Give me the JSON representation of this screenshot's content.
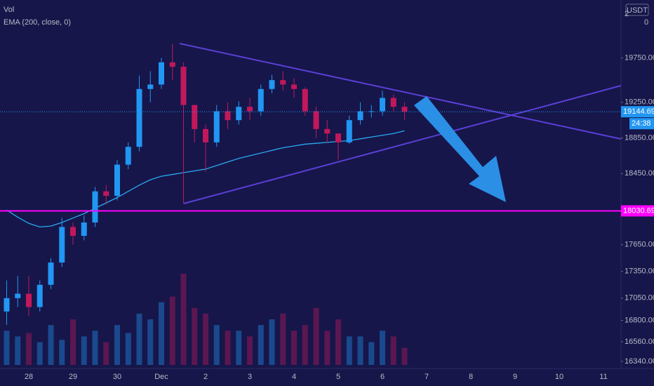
{
  "chart_data": {
    "type": "candlestick",
    "currency": "USDT",
    "volume_label": "Vol",
    "volume_axis_labels": [
      "2",
      "0"
    ],
    "indicator_label": "EMA (200, close, 0)",
    "countdown": "24:38",
    "categories": [
      null,
      null,
      "28",
      null,
      null,
      null,
      "29",
      null,
      null,
      null,
      "30",
      null,
      null,
      null,
      "Dec",
      null,
      null,
      null,
      "2",
      null,
      null,
      null,
      "3",
      null,
      null,
      null,
      "4",
      null,
      null,
      null,
      "5",
      null,
      null,
      null,
      "6",
      null,
      null,
      null,
      "7",
      null,
      null,
      null,
      "8",
      null,
      null,
      null,
      "9",
      null,
      null,
      null,
      "10",
      null,
      null,
      null,
      "11",
      null
    ],
    "open": [
      16900,
      17050,
      17100,
      16950,
      17200,
      17450,
      17850,
      17750,
      17900,
      18250,
      18200,
      18550,
      18750,
      19400,
      19450,
      19700,
      19650,
      19220,
      18950,
      18800,
      19150,
      19050,
      19200,
      19150,
      19400,
      19500,
      19450,
      19400,
      19150,
      18950,
      18900,
      18800,
      19050,
      19150,
      19150,
      19300,
      19200,
      null,
      null,
      null,
      null,
      null,
      null,
      null,
      null,
      null,
      null,
      null,
      null,
      null,
      null,
      null,
      null,
      null,
      null,
      null
    ],
    "high": [
      17250,
      17300,
      17300,
      17250,
      17500,
      17950,
      17900,
      17980,
      18300,
      18320,
      18600,
      18800,
      19550,
      19600,
      19750,
      19910,
      19700,
      19200,
      19000,
      19220,
      19250,
      19260,
      19300,
      19450,
      19560,
      19600,
      19520,
      19420,
      19200,
      19050,
      18900,
      19100,
      19250,
      19220,
      19380,
      19340,
      19250,
      null,
      null,
      null,
      null,
      null,
      null,
      null,
      null,
      null,
      null,
      null,
      null,
      null,
      null,
      null,
      null,
      null,
      null,
      null
    ],
    "low": [
      16750,
      16950,
      16850,
      16900,
      17150,
      17400,
      17650,
      17700,
      17850,
      18100,
      18150,
      18500,
      18700,
      19250,
      19400,
      19500,
      18110,
      18800,
      18470,
      18750,
      18950,
      19000,
      19050,
      19100,
      19350,
      19380,
      19300,
      19100,
      18850,
      18800,
      18600,
      18780,
      19000,
      19080,
      19100,
      19150,
      19050,
      null,
      null,
      null,
      null,
      null,
      null,
      null,
      null,
      null,
      null,
      null,
      null,
      null,
      null,
      null,
      null,
      null,
      null,
      null
    ],
    "close": [
      17050,
      17100,
      16950,
      17200,
      17450,
      17850,
      17750,
      17900,
      18250,
      18200,
      18550,
      18750,
      19400,
      19450,
      19700,
      19650,
      19220,
      18950,
      18800,
      19150,
      19050,
      19200,
      19150,
      19400,
      19500,
      19450,
      19400,
      19150,
      18950,
      18900,
      18800,
      19050,
      19150,
      19150,
      19300,
      19200,
      19144.69,
      null,
      null,
      null,
      null,
      null,
      null,
      null,
      null,
      null,
      null,
      null,
      null,
      null,
      null,
      null,
      null,
      null,
      null,
      null
    ],
    "volume": [
      30,
      25,
      28,
      20,
      35,
      22,
      40,
      25,
      30,
      20,
      35,
      28,
      45,
      40,
      55,
      60,
      80,
      50,
      45,
      35,
      30,
      30,
      25,
      35,
      40,
      45,
      30,
      35,
      50,
      30,
      40,
      25,
      25,
      20,
      30,
      25,
      15,
      null,
      null,
      null,
      null,
      null,
      null,
      null,
      null,
      null,
      null,
      null,
      null,
      null,
      null,
      null,
      null,
      null,
      null,
      null
    ],
    "ema": [
      18040,
      17960,
      17890,
      17850,
      17860,
      17900,
      17950,
      18000,
      18060,
      18120,
      18180,
      18250,
      18320,
      18380,
      18420,
      18440,
      18460,
      18480,
      18500,
      18540,
      18580,
      18620,
      18650,
      18680,
      18710,
      18740,
      18760,
      18780,
      18790,
      18800,
      18810,
      18820,
      18840,
      18860,
      18880,
      18900,
      18930,
      null,
      null,
      null,
      null,
      null,
      null,
      null,
      null,
      null,
      null,
      null,
      null,
      null,
      null,
      null,
      null,
      null,
      null,
      null
    ],
    "up_color": "#2196f3",
    "down_color": "#c2185b",
    "ema_color": "#29a9f0",
    "last_price": 19144.69,
    "price_lines": [
      {
        "value": 18030.69,
        "color": "#ff00ff"
      }
    ],
    "ylim": [
      16260,
      20400
    ],
    "yticks": [
      {
        "value": 19750,
        "label": "19750.00"
      },
      {
        "value": 19250,
        "label": "19250.00"
      },
      {
        "value": 18850,
        "label": "18850.00"
      },
      {
        "value": 18450,
        "label": "18450.00"
      },
      {
        "value": 17650,
        "label": "17650.00"
      },
      {
        "value": 17350,
        "label": "17350.00"
      },
      {
        "value": 17050,
        "label": "17050.00"
      },
      {
        "value": 16800,
        "label": "16800.00"
      },
      {
        "value": 16560,
        "label": "16560.00"
      },
      {
        "value": 16340,
        "label": "16340.00"
      }
    ]
  }
}
